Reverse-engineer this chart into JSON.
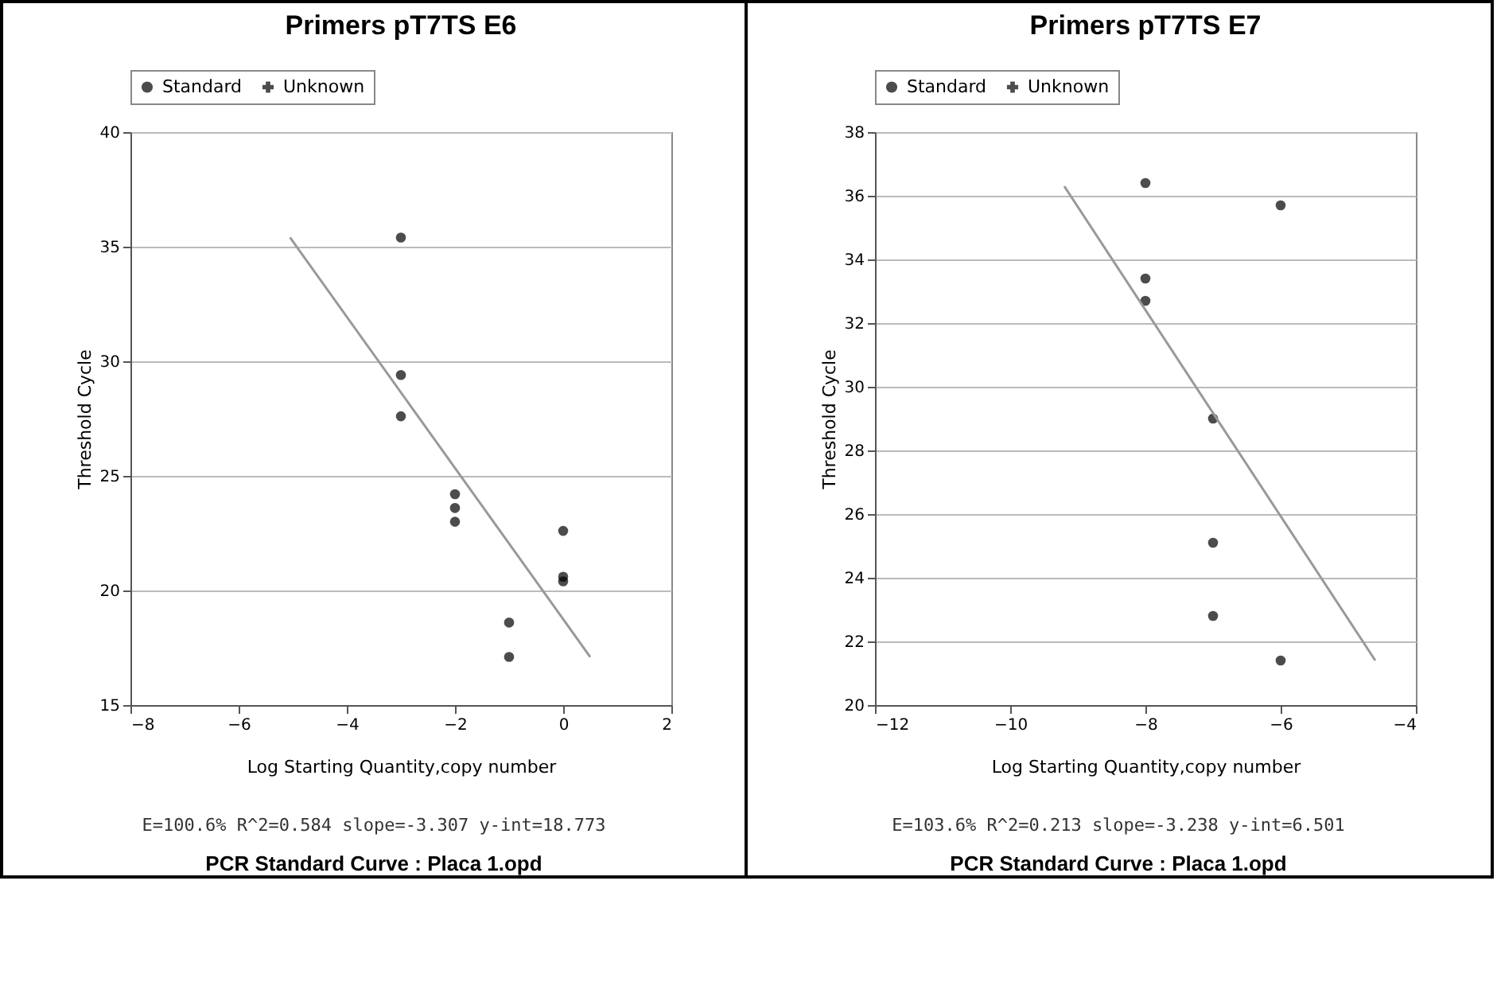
{
  "chart_data": [
    {
      "type": "scatter",
      "title": "Primers pT7TS E6",
      "xlabel": "Log Starting Quantity,copy number",
      "ylabel": "Threshold Cycle",
      "xlim": [
        -8,
        2
      ],
      "xticks": [
        -8,
        -6,
        -4,
        -2,
        0,
        2
      ],
      "ylim": [
        15,
        40
      ],
      "yticks": [
        15,
        20,
        25,
        30,
        35,
        40
      ],
      "grid": "y",
      "legend": "top left",
      "annotations": [
        "E=100.6% R^2=0.584 slope=-3.307 y-int=18.773",
        "PCR Standard Curve  : Placa 1.opd"
      ],
      "series": [
        {
          "name": "Standard",
          "marker": "circle",
          "color": "#000000",
          "x": [
            -3,
            -3,
            -3,
            -2,
            -2,
            -2,
            -1,
            -1,
            0,
            0,
            0
          ],
          "values": [
            35.4,
            29.4,
            27.6,
            24.2,
            23.6,
            23.0,
            18.6,
            17.1,
            22.6,
            20.6,
            20.4
          ]
        },
        {
          "name": "Unknown",
          "marker": "cross",
          "color": "#000000"
        },
        {
          "type": "line",
          "color": "#999999",
          "x": [
            -5.05,
            0.5
          ],
          "values": [
            35.4,
            17.1
          ]
        }
      ]
    },
    {
      "type": "scatter",
      "title": "Primers pT7TS E7",
      "xlabel": "Log Starting Quantity,copy number",
      "ylabel": "Threshold Cycle",
      "xlim": [
        -12,
        -4
      ],
      "xticks": [
        -12,
        -10,
        -8,
        -6,
        -4
      ],
      "ylim": [
        20,
        38
      ],
      "yticks": [
        20,
        22,
        24,
        26,
        28,
        30,
        32,
        34,
        36,
        38
      ],
      "grid": "y",
      "legend": "top left",
      "annotations": [
        "E=103.6% R^2=0.213 slope=-3.238 y-int=6.501",
        "PCR Standard Curve  : Placa 1.opd"
      ],
      "series": [
        {
          "name": "Standard",
          "marker": "circle",
          "color": "#000000",
          "x": [
            -8,
            -8,
            -8,
            -7,
            -7,
            -7,
            -6,
            -6
          ],
          "values": [
            36.4,
            33.4,
            32.7,
            29.0,
            25.1,
            22.8,
            35.7,
            21.4
          ]
        },
        {
          "name": "Unknown",
          "marker": "cross",
          "color": "#000000"
        },
        {
          "type": "line",
          "color": "#999999",
          "x": [
            -9.2,
            -4.6
          ],
          "values": [
            36.3,
            21.4
          ]
        }
      ]
    }
  ]
}
